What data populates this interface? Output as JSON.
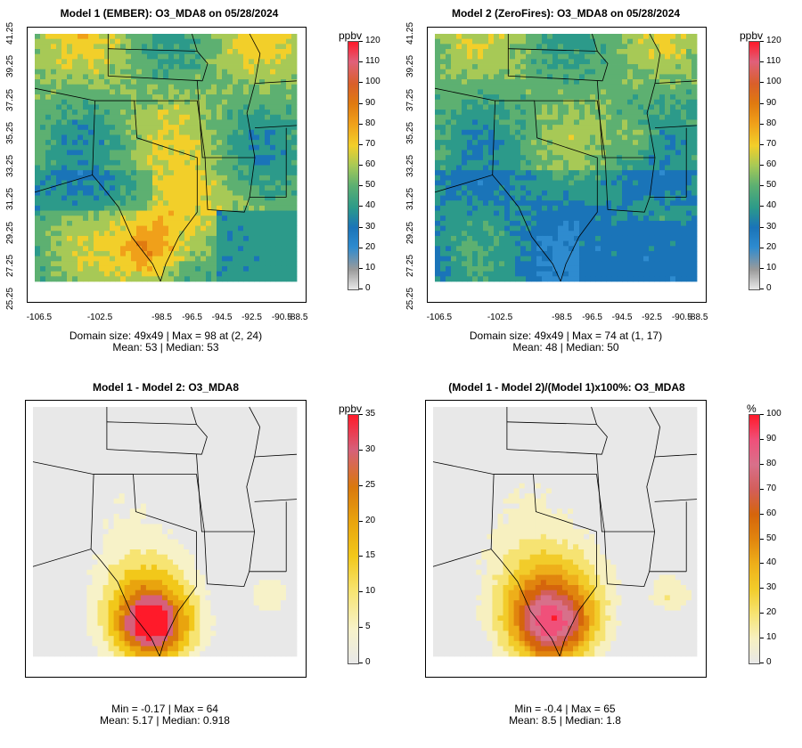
{
  "unit_ppbv": "ppbv",
  "unit_pct": "%",
  "x_ticks": [
    "-106.5",
    "-102.5",
    "-98.5",
    "-96.5",
    "-94.5",
    "-92.5",
    "-90.5",
    "-88.5"
  ],
  "y_ticks": [
    "41.25",
    "39.25",
    "37.25",
    "35.25",
    "33.25",
    "31.25",
    "29.25",
    "27.25",
    "25.25"
  ],
  "panels": {
    "p1": {
      "title": "Model 1 (EMBER): O3_MDA8 on 05/28/2024",
      "stat1": "Domain size: 49x49 | Max = 98 at (2, 24)",
      "stat2": "Mean: 53 |  Median: 53",
      "cbar_ticks": [
        "120",
        "110",
        "100",
        "90",
        "80",
        "70",
        "60",
        "50",
        "40",
        "30",
        "20",
        "10",
        "0"
      ]
    },
    "p2": {
      "title": "Model 2 (ZeroFires): O3_MDA8 on 05/28/2024",
      "stat1": "Domain size: 49x49 | Max = 74 at (1, 17)",
      "stat2": "Mean: 48 |  Median: 50",
      "cbar_ticks": [
        "120",
        "110",
        "100",
        "90",
        "80",
        "70",
        "60",
        "50",
        "40",
        "30",
        "20",
        "10",
        "0"
      ]
    },
    "p3": {
      "title": "Model 1 - Model 2: O3_MDA8",
      "stat1": "Min = -0.17 | Max = 64",
      "stat2": "Mean: 5.17 |  Median: 0.918",
      "cbar_ticks": [
        "35",
        "30",
        "25",
        "20",
        "15",
        "10",
        "5",
        "0"
      ]
    },
    "p4": {
      "title": "(Model 1 - Model 2)/(Model 1)x100%: O3_MDA8",
      "stat1": "Min = -0.4 | Max = 65",
      "stat2": "Mean: 8.5 |  Median: 1.8",
      "cbar_ticks": [
        "100",
        "90",
        "80",
        "70",
        "60",
        "50",
        "40",
        "30",
        "20",
        "10",
        "0"
      ]
    }
  },
  "colors": {
    "conc_scale": [
      "#e8e8e8",
      "#9a9a9a",
      "#2e8bcf",
      "#1a74b8",
      "#2c9a8a",
      "#5db071",
      "#a7c956",
      "#f2cf2a",
      "#f0a01a",
      "#e07a10",
      "#d95f2a",
      "#e0607a",
      "#ff1a2a"
    ],
    "diff_scale": [
      "#e8e8e8",
      "#f7f2c8",
      "#f7e472",
      "#f2c81a",
      "#e9a40e",
      "#d9780c",
      "#d6607a",
      "#ff1a2a"
    ],
    "pct_scale": [
      "#e8e8e8",
      "#f7f0c0",
      "#f6e372",
      "#f2cc2a",
      "#eeaf1a",
      "#e1850e",
      "#d5650c",
      "#d35e5a",
      "#d8708a",
      "#f0507a",
      "#ff1a2a"
    ]
  }
}
